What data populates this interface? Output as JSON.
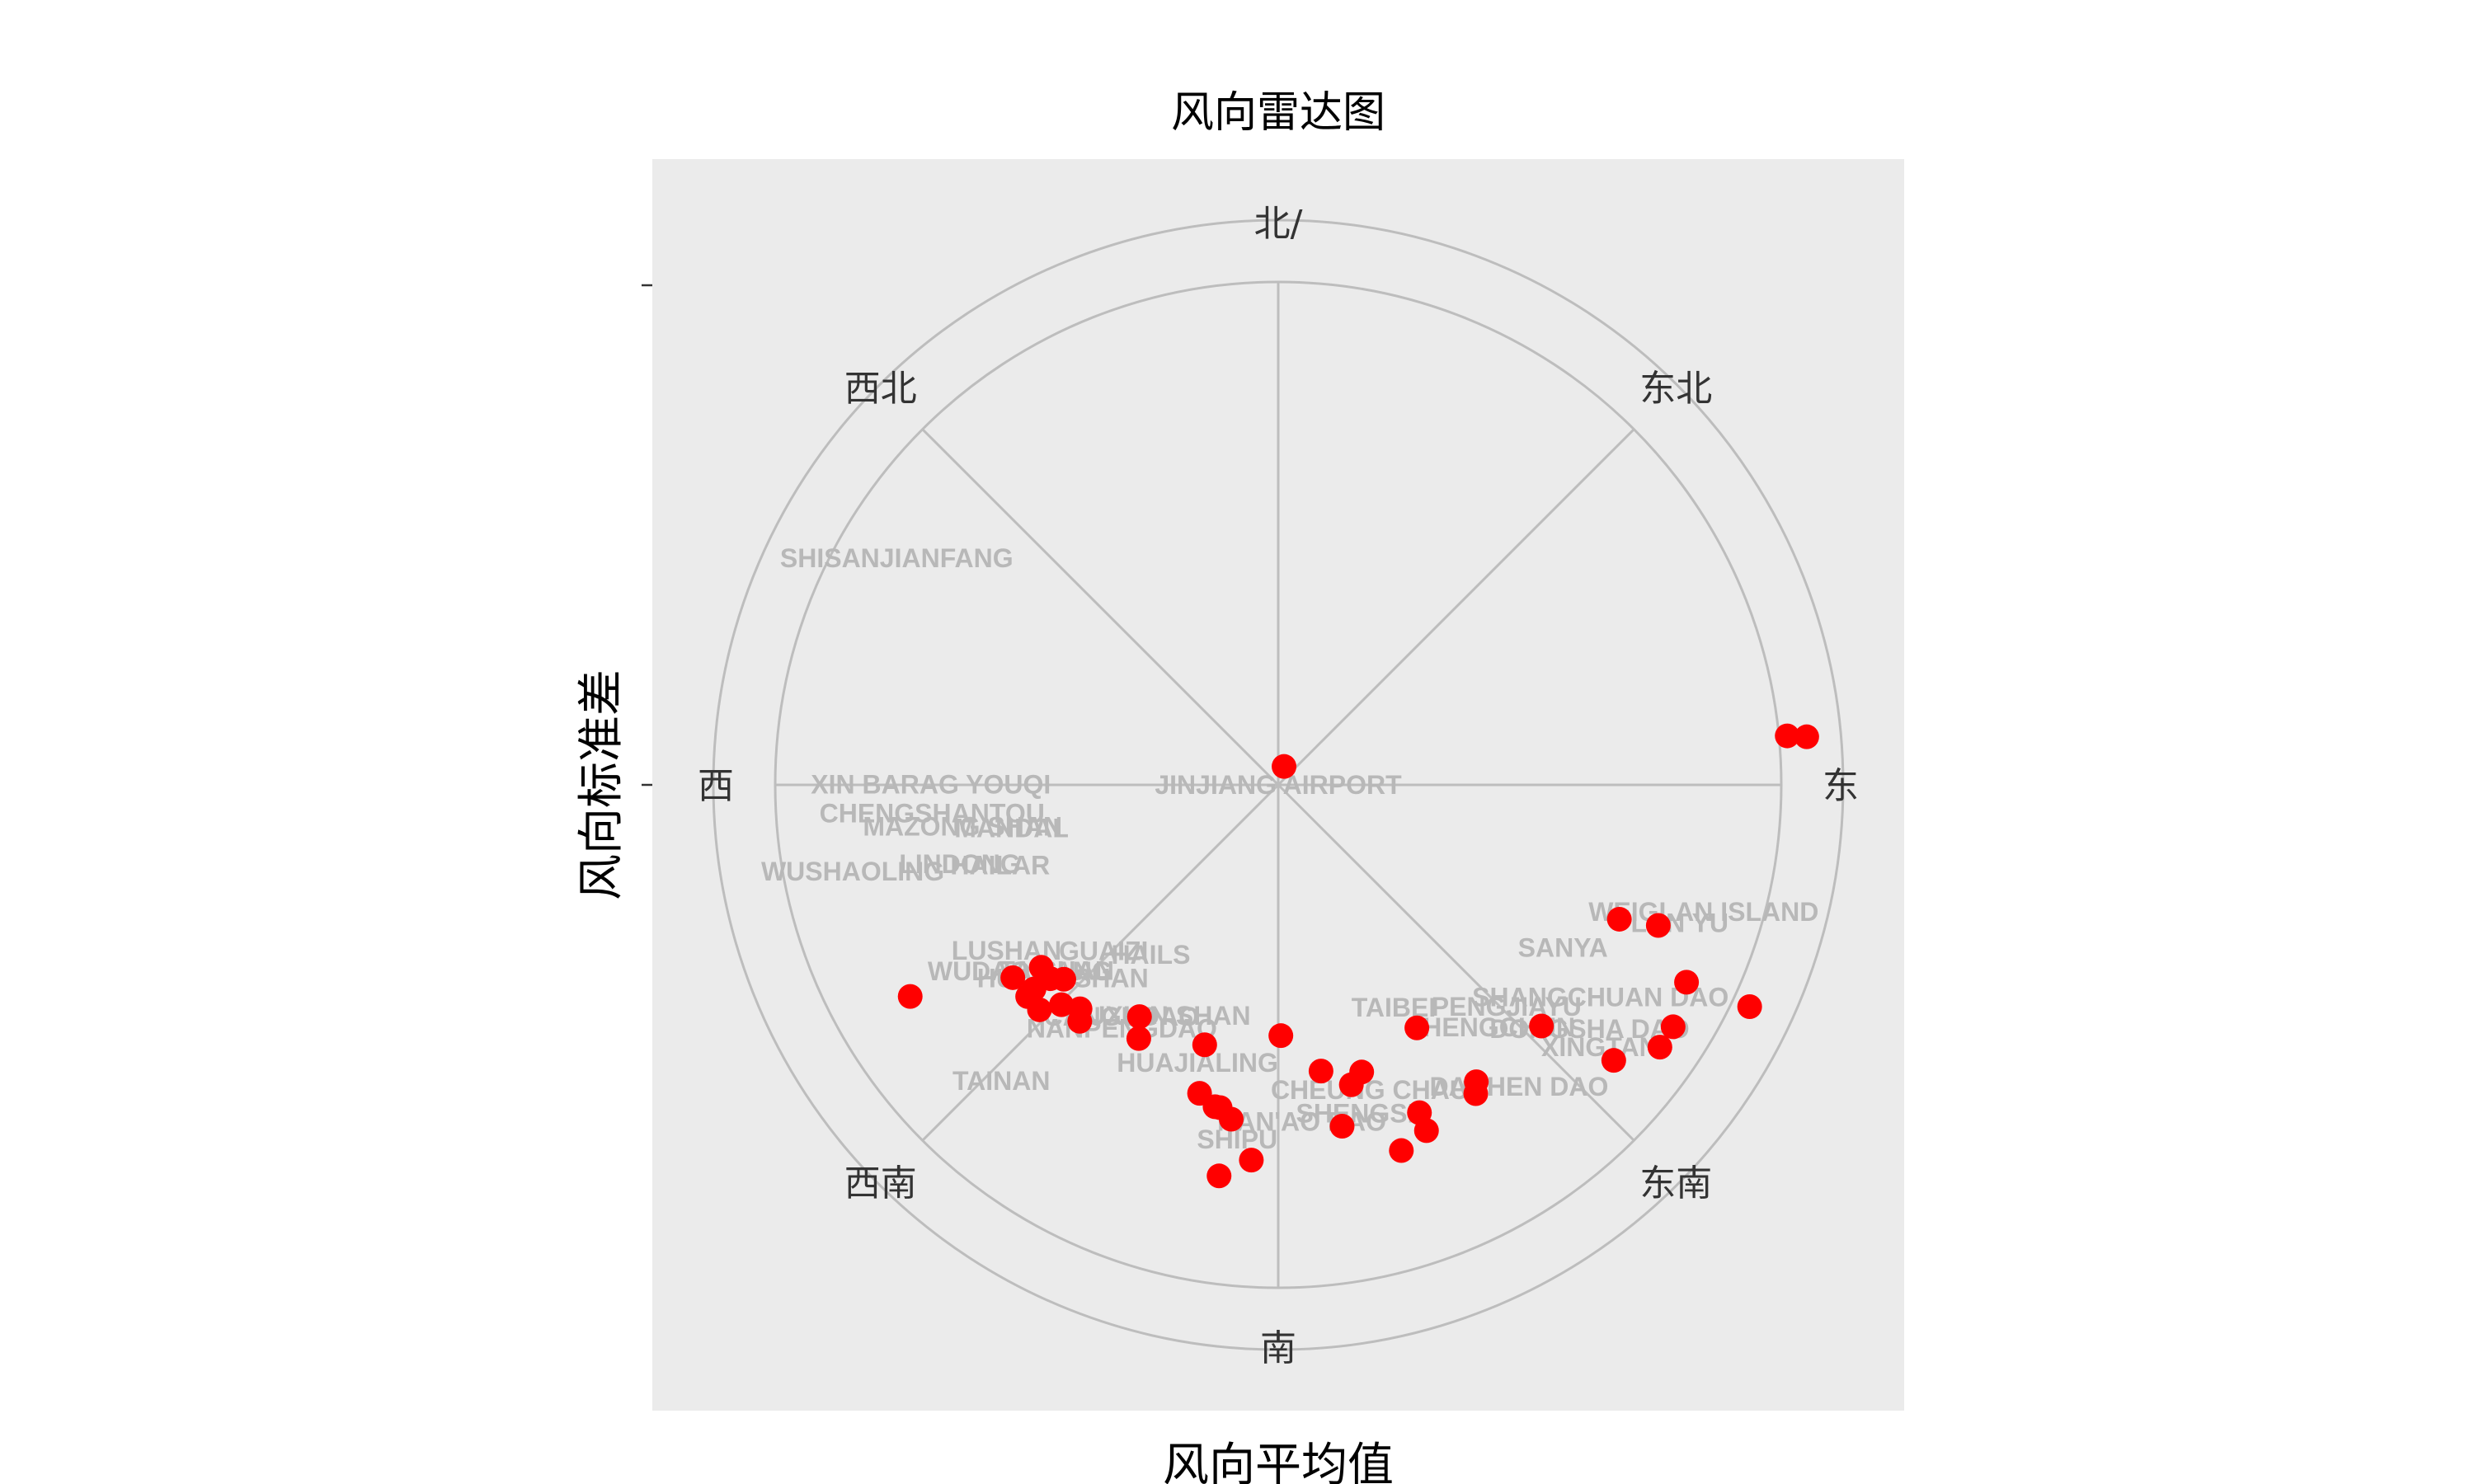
{
  "chart_data": {
    "type": "scatter",
    "coordinate_system": "polar",
    "title": "风向雷达图",
    "xlabel": "风向平均值",
    "ylabel": "风向标准差",
    "angle_axis_labels": [
      "北/",
      "东北",
      "东",
      "东南",
      "南",
      "西南",
      "西",
      "西北"
    ],
    "grid": true,
    "point_color": "#ff0000",
    "points": [
      {
        "angle": 17.5,
        "radius": 0.02
      },
      {
        "angle": 84.5,
        "radius": 0.53
      },
      {
        "angle": 84.8,
        "radius": 0.55
      },
      {
        "angle": 110.3,
        "radius": 0.42
      },
      {
        "angle": 111.5,
        "radius": 0.38
      },
      {
        "angle": 115.8,
        "radius": 0.47
      },
      {
        "angle": 115.2,
        "radius": 0.54
      },
      {
        "angle": 121.5,
        "radius": 0.48
      },
      {
        "angle": 124.5,
        "radius": 0.48
      },
      {
        "angle": 129.4,
        "radius": 0.45
      },
      {
        "angle": 132.5,
        "radius": 0.37
      },
      {
        "angle": 146.3,
        "radius": 0.37
      },
      {
        "angle": 147.4,
        "radius": 0.38
      },
      {
        "angle": 150.3,
        "radius": 0.29
      },
      {
        "angle": 156.7,
        "radius": 0.37
      },
      {
        "angle": 156.8,
        "radius": 0.39
      },
      {
        "angle": 161.4,
        "radius": 0.4
      },
      {
        "angle": 163.8,
        "radius": 0.31
      },
      {
        "angle": 166.3,
        "radius": 0.32
      },
      {
        "angle": 171.5,
        "radius": 0.3
      },
      {
        "angle": 179.4,
        "radius": 0.26
      },
      {
        "angle": 169.4,
        "radius": 0.36
      },
      {
        "angle": 188.0,
        "radius": 0.35
      },
      {
        "angle": 184.1,
        "radius": 0.39
      },
      {
        "angle": 190.2,
        "radius": 0.34
      },
      {
        "angle": 194.3,
        "radius": 0.33
      },
      {
        "angle": 191.1,
        "radius": 0.34
      },
      {
        "angle": 188.6,
        "radius": 0.41
      },
      {
        "angle": 195.8,
        "radius": 0.28
      },
      {
        "angle": 208.8,
        "radius": 0.3
      },
      {
        "angle": 210.9,
        "radius": 0.28
      },
      {
        "angle": 220.0,
        "radius": 0.32
      },
      {
        "angle": 221.5,
        "radius": 0.31
      },
      {
        "angle": 224.6,
        "radius": 0.32
      },
      {
        "angle": 226.7,
        "radius": 0.34
      },
      {
        "angle": 227.8,
        "radius": 0.3
      },
      {
        "angle": 229.6,
        "radius": 0.31
      },
      {
        "angle": 230.1,
        "radius": 0.33
      },
      {
        "angle": 229.8,
        "radius": 0.34
      },
      {
        "angle": 232.4,
        "radius": 0.31
      },
      {
        "angle": 234.0,
        "radius": 0.34
      },
      {
        "angle": 240.1,
        "radius": 0.44
      }
    ],
    "text_labels": [
      {
        "text": "SHISANJIANFANG",
        "angle": 300.7,
        "radius": 0.46
      },
      {
        "text": "XIN BARAG YOUQI",
        "angle": 270.1,
        "radius": 0.36
      },
      {
        "text": "CHENGSHANTOU",
        "angle": 265.3,
        "radius": 0.36
      },
      {
        "text": "MAZONG SHAN",
        "angle": 262.5,
        "radius": 0.33
      },
      {
        "text": "MANDAL",
        "angle": 260.8,
        "radius": 0.28
      },
      {
        "text": "WUSHAOLING",
        "angle": 258.5,
        "radius": 0.45
      },
      {
        "text": "LINDONG",
        "angle": 256.0,
        "radius": 0.34
      },
      {
        "text": "HAILAR",
        "angle": 253.9,
        "radius": 0.3
      },
      {
        "text": "JINJIANG AIRPORT",
        "angle": 4.1,
        "radius": 0.0
      },
      {
        "text": "WEIGLAN ISLAND",
        "angle": 106.6,
        "radius": 0.46
      },
      {
        "text": "LAN YU",
        "angle": 109.0,
        "radius": 0.44
      },
      {
        "text": "SANYA",
        "angle": 119.8,
        "radius": 0.34
      },
      {
        "text": "SHANGCHUAN DAO",
        "angle": 123.4,
        "radius": 0.4
      },
      {
        "text": "DONGSHA DAO",
        "angle": 128.1,
        "radius": 0.41
      },
      {
        "text": "PENGJIAYU",
        "angle": 134.2,
        "radius": 0.33
      },
      {
        "text": "XINGTAN",
        "angle": 129.2,
        "radius": 0.43
      },
      {
        "text": "HENGCHUN",
        "angle": 137.7,
        "radius": 0.34
      },
      {
        "text": "TAIBEI",
        "angle": 152.6,
        "radius": 0.26
      },
      {
        "text": "DACHEN DAO",
        "angle": 141.4,
        "radius": 0.4
      },
      {
        "text": "CHEUNG CHAU",
        "angle": 163.3,
        "radius": 0.33
      },
      {
        "text": "SHENGSI",
        "angle": 166.8,
        "radius": 0.35
      },
      {
        "text": "NAN'AO DAO",
        "angle": 176.0,
        "radius": 0.35
      },
      {
        "text": "SHIPU",
        "angle": 186.6,
        "radius": 0.37
      },
      {
        "text": "HUAJIALING",
        "angle": 196.2,
        "radius": 0.3
      },
      {
        "text": "JIUXIAN SHAN",
        "angle": 207.6,
        "radius": 0.27
      },
      {
        "text": "CANGUDAO",
        "angle": 214.1,
        "radius": 0.29
      },
      {
        "text": "NANPENGDAO",
        "angle": 212.7,
        "radius": 0.3
      },
      {
        "text": "HAILS",
        "angle": 216.9,
        "radius": 0.22
      },
      {
        "text": "GUAIZI",
        "angle": 226.4,
        "radius": 0.25
      },
      {
        "text": "HUANGSHAN",
        "angle": 228.1,
        "radius": 0.3
      },
      {
        "text": "TAISHAN",
        "angle": 230.0,
        "radius": 0.3
      },
      {
        "text": "WUDAOLIANG",
        "angle": 234.2,
        "radius": 0.33
      },
      {
        "text": "LUSHAN",
        "angle": 238.6,
        "radius": 0.33
      },
      {
        "text": "TAINAN",
        "angle": 223.1,
        "radius": 0.42
      }
    ]
  }
}
